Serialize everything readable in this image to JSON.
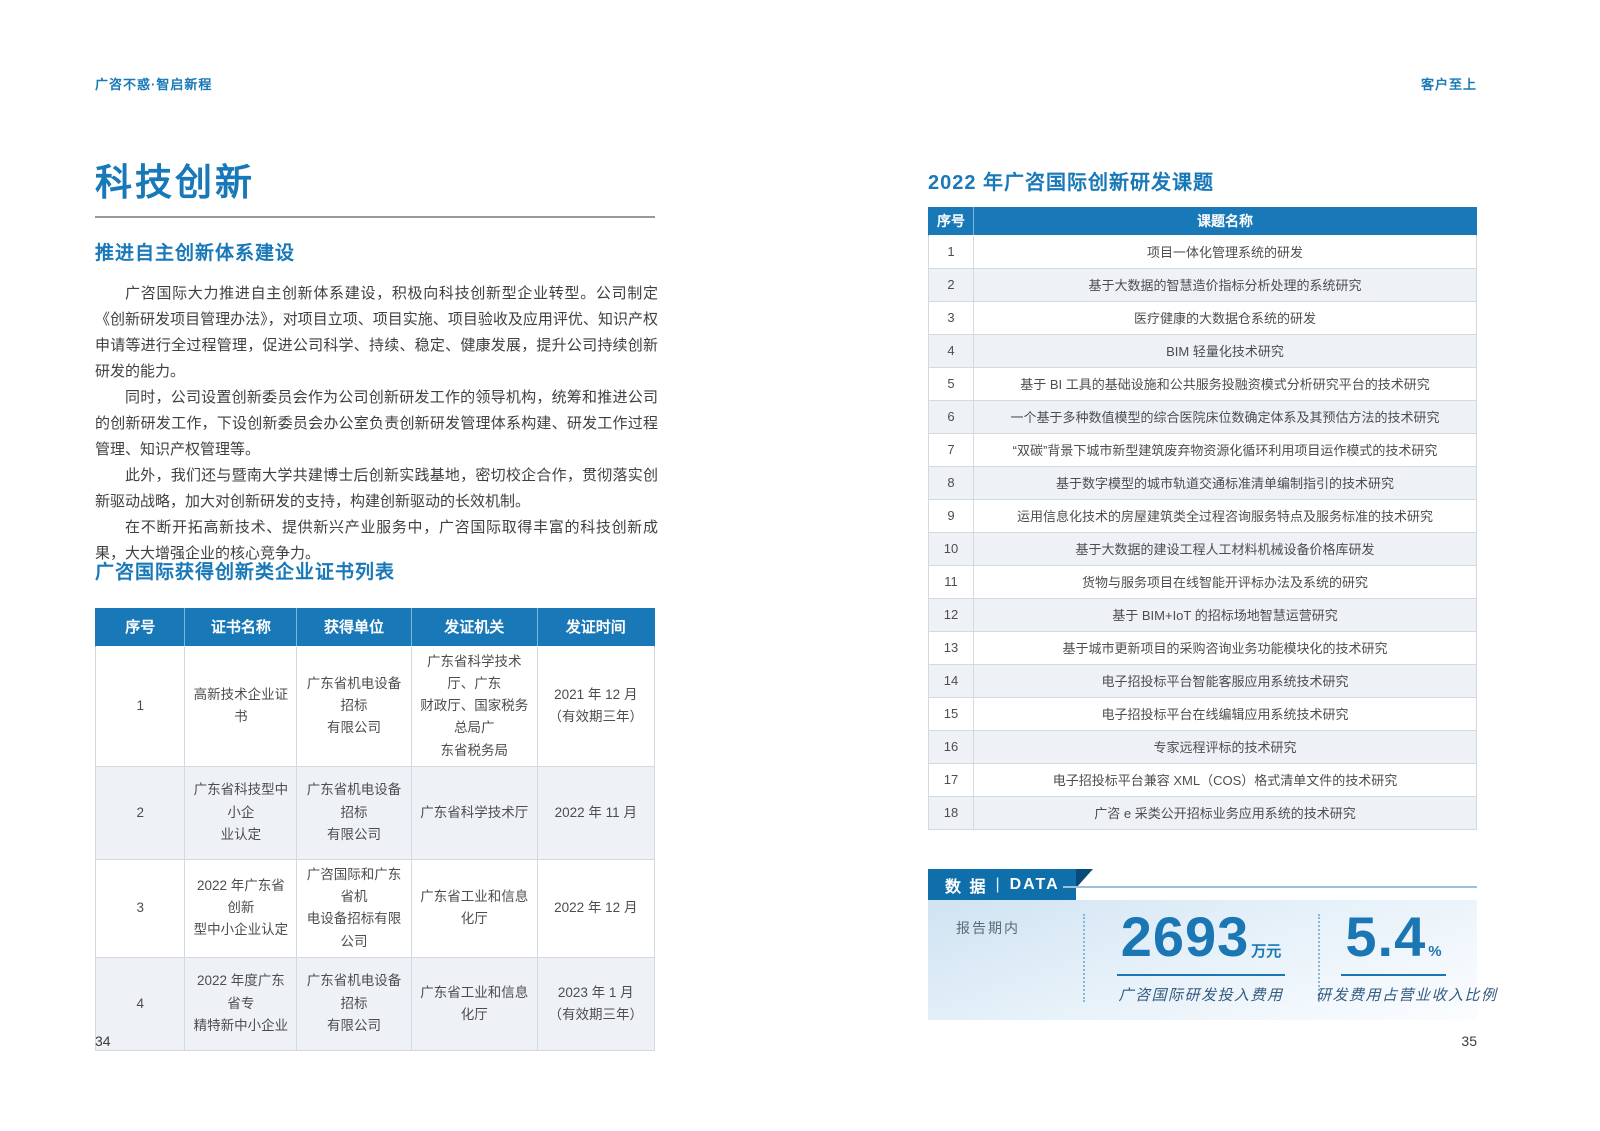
{
  "page_left": {
    "header": "广咨不惑·智启新程",
    "page_number": "34",
    "title": "科技创新",
    "section_heading": "推进自主创新体系建设",
    "paragraphs": [
      "广咨国际大力推进自主创新体系建设，积极向科技创新型企业转型。公司制定《创新研发项目管理办法》，对项目立项、项目实施、项目验收及应用评优、知识产权申请等进行全过程管理，促进公司科学、持续、稳定、健康发展，提升公司持续创新研发的能力。",
      "同时，公司设置创新委员会作为公司创新研发工作的领导机构，统筹和推进公司的创新研发工作，下设创新委员会办公室负责创新研发管理体系构建、研发工作过程管理、知识产权管理等。",
      "此外，我们还与暨南大学共建博士后创新实践基地，密切校企合作，贯彻落实创新驱动战略，加大对创新研发的支持，构建创新驱动的长效机制。",
      "在不断开拓高新技术、提供新兴产业服务中，广咨国际取得丰富的科技创新成果，大大增强企业的核心竞争力。"
    ],
    "cert_table": {
      "title": "广咨国际获得创新类企业证书列表",
      "headers": [
        "序号",
        "证书名称",
        "获得单位",
        "发证机关",
        "发证时间"
      ],
      "rows": [
        [
          "1",
          "高新技术企业证书",
          "广东省机电设备招标\n有限公司",
          "广东省科学技术厅、广东\n财政厅、国家税务总局广\n东省税务局",
          "2021 年 12 月\n（有效期三年）"
        ],
        [
          "2",
          "广东省科技型中小企\n业认定",
          "广东省机电设备招标\n有限公司",
          "广东省科学技术厅",
          "2022 年 11 月"
        ],
        [
          "3",
          "2022 年广东省创新\n型中小企业认定",
          "广咨国际和广东省机\n电设备招标有限公司",
          "广东省工业和信息化厅",
          "2022 年 12 月"
        ],
        [
          "4",
          "2022 年度广东省专\n精特新中小企业",
          "广东省机电设备招标\n有限公司",
          "广东省工业和信息化厅",
          "2023 年 1 月\n（有效期三年）"
        ]
      ]
    }
  },
  "page_right": {
    "header": "客户至上",
    "page_number": "35",
    "topic_table": {
      "title": "2022 年广咨国际创新研发课题",
      "headers": [
        "序号",
        "课题名称"
      ],
      "rows": [
        [
          "1",
          "项目一体化管理系统的研发"
        ],
        [
          "2",
          "基于大数据的智慧造价指标分析处理的系统研究"
        ],
        [
          "3",
          "医疗健康的大数据仓系统的研发"
        ],
        [
          "4",
          "BIM 轻量化技术研究"
        ],
        [
          "5",
          "基于 BI 工具的基础设施和公共服务投融资模式分析研究平台的技术研究"
        ],
        [
          "6",
          "一个基于多种数值模型的综合医院床位数确定体系及其预估方法的技术研究"
        ],
        [
          "7",
          "“双碳”背景下城市新型建筑废弃物资源化循环利用项目运作模式的技术研究"
        ],
        [
          "8",
          "基于数字模型的城市轨道交通标准清单编制指引的技术研究"
        ],
        [
          "9",
          "运用信息化技术的房屋建筑类全过程咨询服务特点及服务标准的技术研究"
        ],
        [
          "10",
          "基于大数据的建设工程人工材料机械设备价格库研发"
        ],
        [
          "11",
          "货物与服务项目在线智能开评标办法及系统的研究"
        ],
        [
          "12",
          "基于 BIM+IoT 的招标场地智慧运营研究"
        ],
        [
          "13",
          "基于城市更新项目的采购咨询业务功能模块化的技术研究"
        ],
        [
          "14",
          "电子招投标平台智能客服应用系统技术研究"
        ],
        [
          "15",
          "电子招投标平台在线编辑应用系统技术研究"
        ],
        [
          "16",
          "专家远程评标的技术研究"
        ],
        [
          "17",
          "电子招投标平台兼容 XML（COS）格式清单文件的技术研究"
        ],
        [
          "18",
          "广咨 e 采类公开招标业务应用系统的技术研究"
        ]
      ]
    },
    "data_section": {
      "tag_zh": "数 据",
      "tag_sep": "|",
      "tag_en": "DATA",
      "period_label": "报告期内",
      "stats": [
        {
          "value": "2693",
          "unit": "万元",
          "label": "广咨国际研发投入费用"
        },
        {
          "value": "5.4",
          "unit": "%",
          "label": "研发费用占营业收入比例"
        }
      ]
    }
  },
  "colors": {
    "accent_blue": "#1878b8",
    "banner_blue": "#0f6fab",
    "banner_fold_blue": "#0a4a77",
    "stat_blue": "#1b76b4",
    "row_alt": "#eef2f6"
  }
}
